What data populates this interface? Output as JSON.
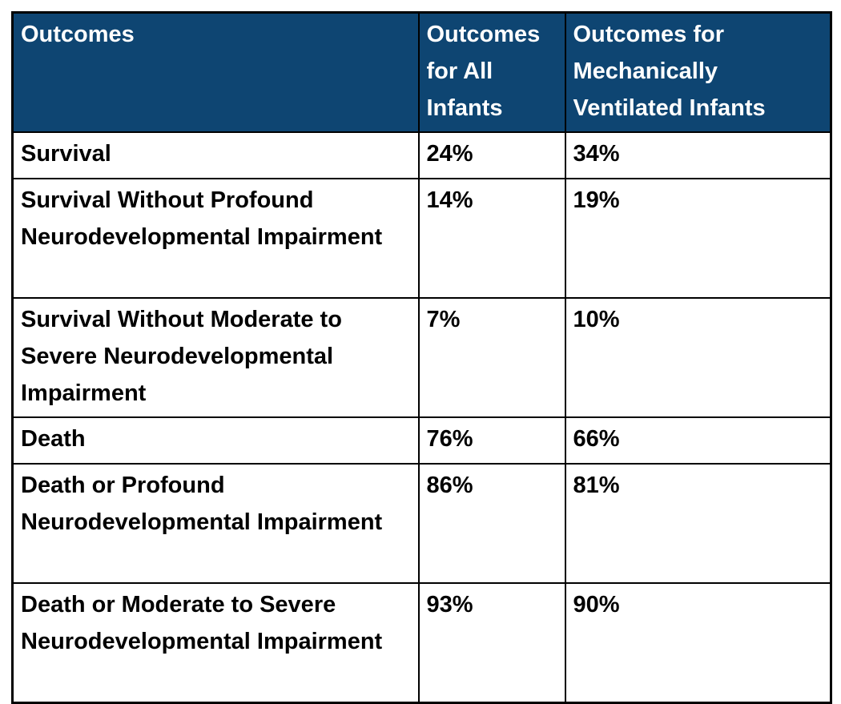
{
  "table": {
    "columns": [
      {
        "label": "Outcomes"
      },
      {
        "label": "Outcomes for All Infants"
      },
      {
        "label": "Outcomes for Mechanically Ventilated Infants"
      }
    ],
    "rows": [
      {
        "outcome": "Survival",
        "all_infants": "24%",
        "ventilated": "34%"
      },
      {
        "outcome": "Survival Without Profound Neurodevelopmental Impairment",
        "all_infants": "14%",
        "ventilated": "19%"
      },
      {
        "outcome": "Survival Without Moderate to Severe Neurodevelopmental Impairment",
        "all_infants": "7%",
        "ventilated": "10%"
      },
      {
        "outcome": "Death",
        "all_infants": "76%",
        "ventilated": "66%"
      },
      {
        "outcome": "Death or Profound Neurodevelopmental Impairment",
        "all_infants": "86%",
        "ventilated": "81%"
      },
      {
        "outcome": "Death or Moderate to Severe Neurodevelopmental Impairment",
        "all_infants": "93%",
        "ventilated": "90%"
      }
    ]
  },
  "colors": {
    "header_bg": "#0E4572",
    "header_text": "#FFFFFF",
    "body_text": "#000000",
    "border": "#000000"
  },
  "chart_data": {
    "type": "table",
    "title": "",
    "columns": [
      "Outcomes",
      "Outcomes for All Infants",
      "Outcomes for Mechanically Ventilated Infants"
    ],
    "categories": [
      "Survival",
      "Survival Without Profound Neurodevelopmental Impairment",
      "Survival Without Moderate to Severe Neurodevelopmental Impairment",
      "Death",
      "Death or Profound Neurodevelopmental Impairment",
      "Death or Moderate to Severe Neurodevelopmental Impairment"
    ],
    "series": [
      {
        "name": "Outcomes for All Infants",
        "values": [
          "24%",
          "14%",
          "7%",
          "76%",
          "86%",
          "93%"
        ]
      },
      {
        "name": "Outcomes for Mechanically Ventilated Infants",
        "values": [
          "34%",
          "19%",
          "10%",
          "66%",
          "81%",
          "90%"
        ]
      }
    ]
  }
}
